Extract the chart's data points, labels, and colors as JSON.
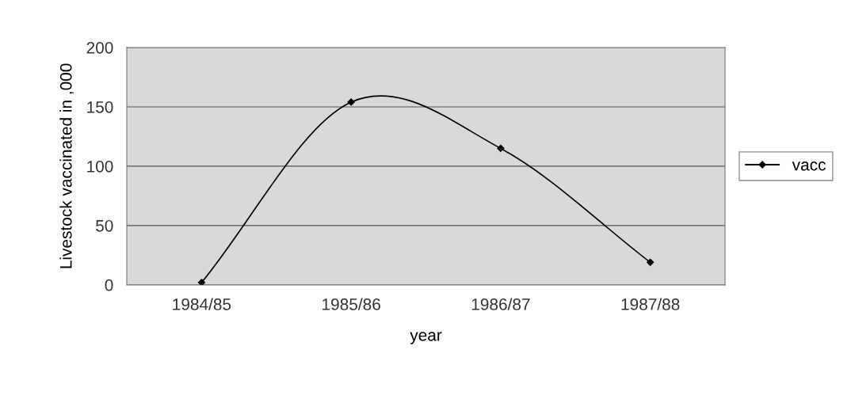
{
  "chart_data": {
    "type": "line",
    "xlabel": "year",
    "ylabel": "Livestock vaccinated in ,000",
    "categories": [
      "1984/85",
      "1985/86",
      "1986/87",
      "1987/88"
    ],
    "series": [
      {
        "name": "vacc",
        "color": "#000000",
        "values": [
          2,
          154,
          115,
          19
        ]
      }
    ],
    "ylim": [
      0,
      200
    ],
    "yticks": [
      0,
      50,
      100,
      150,
      200
    ],
    "grid": "y",
    "legend": "right",
    "marker": "diamond",
    "line_style": "solid"
  }
}
